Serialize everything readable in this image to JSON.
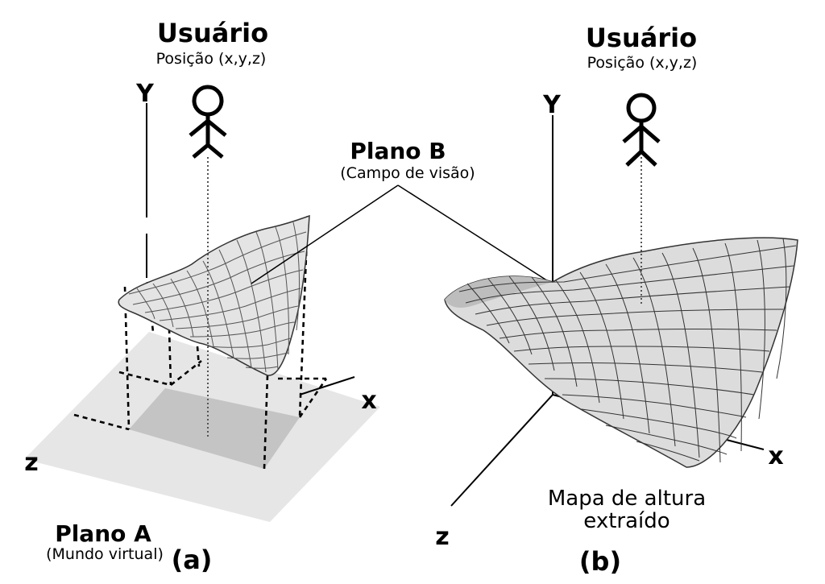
{
  "panel_a": {
    "user_title": "Usuário",
    "user_subtitle": "Posição (x,y,z)",
    "axis_y": "Y",
    "axis_x": "x",
    "axis_z": "z",
    "plane_a_title": "Plano A",
    "plane_a_subtitle": "(Mundo virtual)",
    "caption": "(a)"
  },
  "plane_b": {
    "title": "Plano B",
    "subtitle": "(Campo de visão)"
  },
  "panel_b": {
    "user_title": "Usuário",
    "user_subtitle": "Posição (x,y,z)",
    "axis_y": "Y",
    "axis_x": "x",
    "axis_z": "z",
    "heightmap_line1": "Mapa de altura",
    "heightmap_line2": "extraído",
    "caption": "(b)"
  },
  "colors": {
    "plane_a_fill": "#e6e6e6",
    "projection_fill": "#c4c4c4",
    "surface_fill": "#e4e4e4",
    "surface_b_fill": "#dcdcdc",
    "mesh": "#333333"
  }
}
